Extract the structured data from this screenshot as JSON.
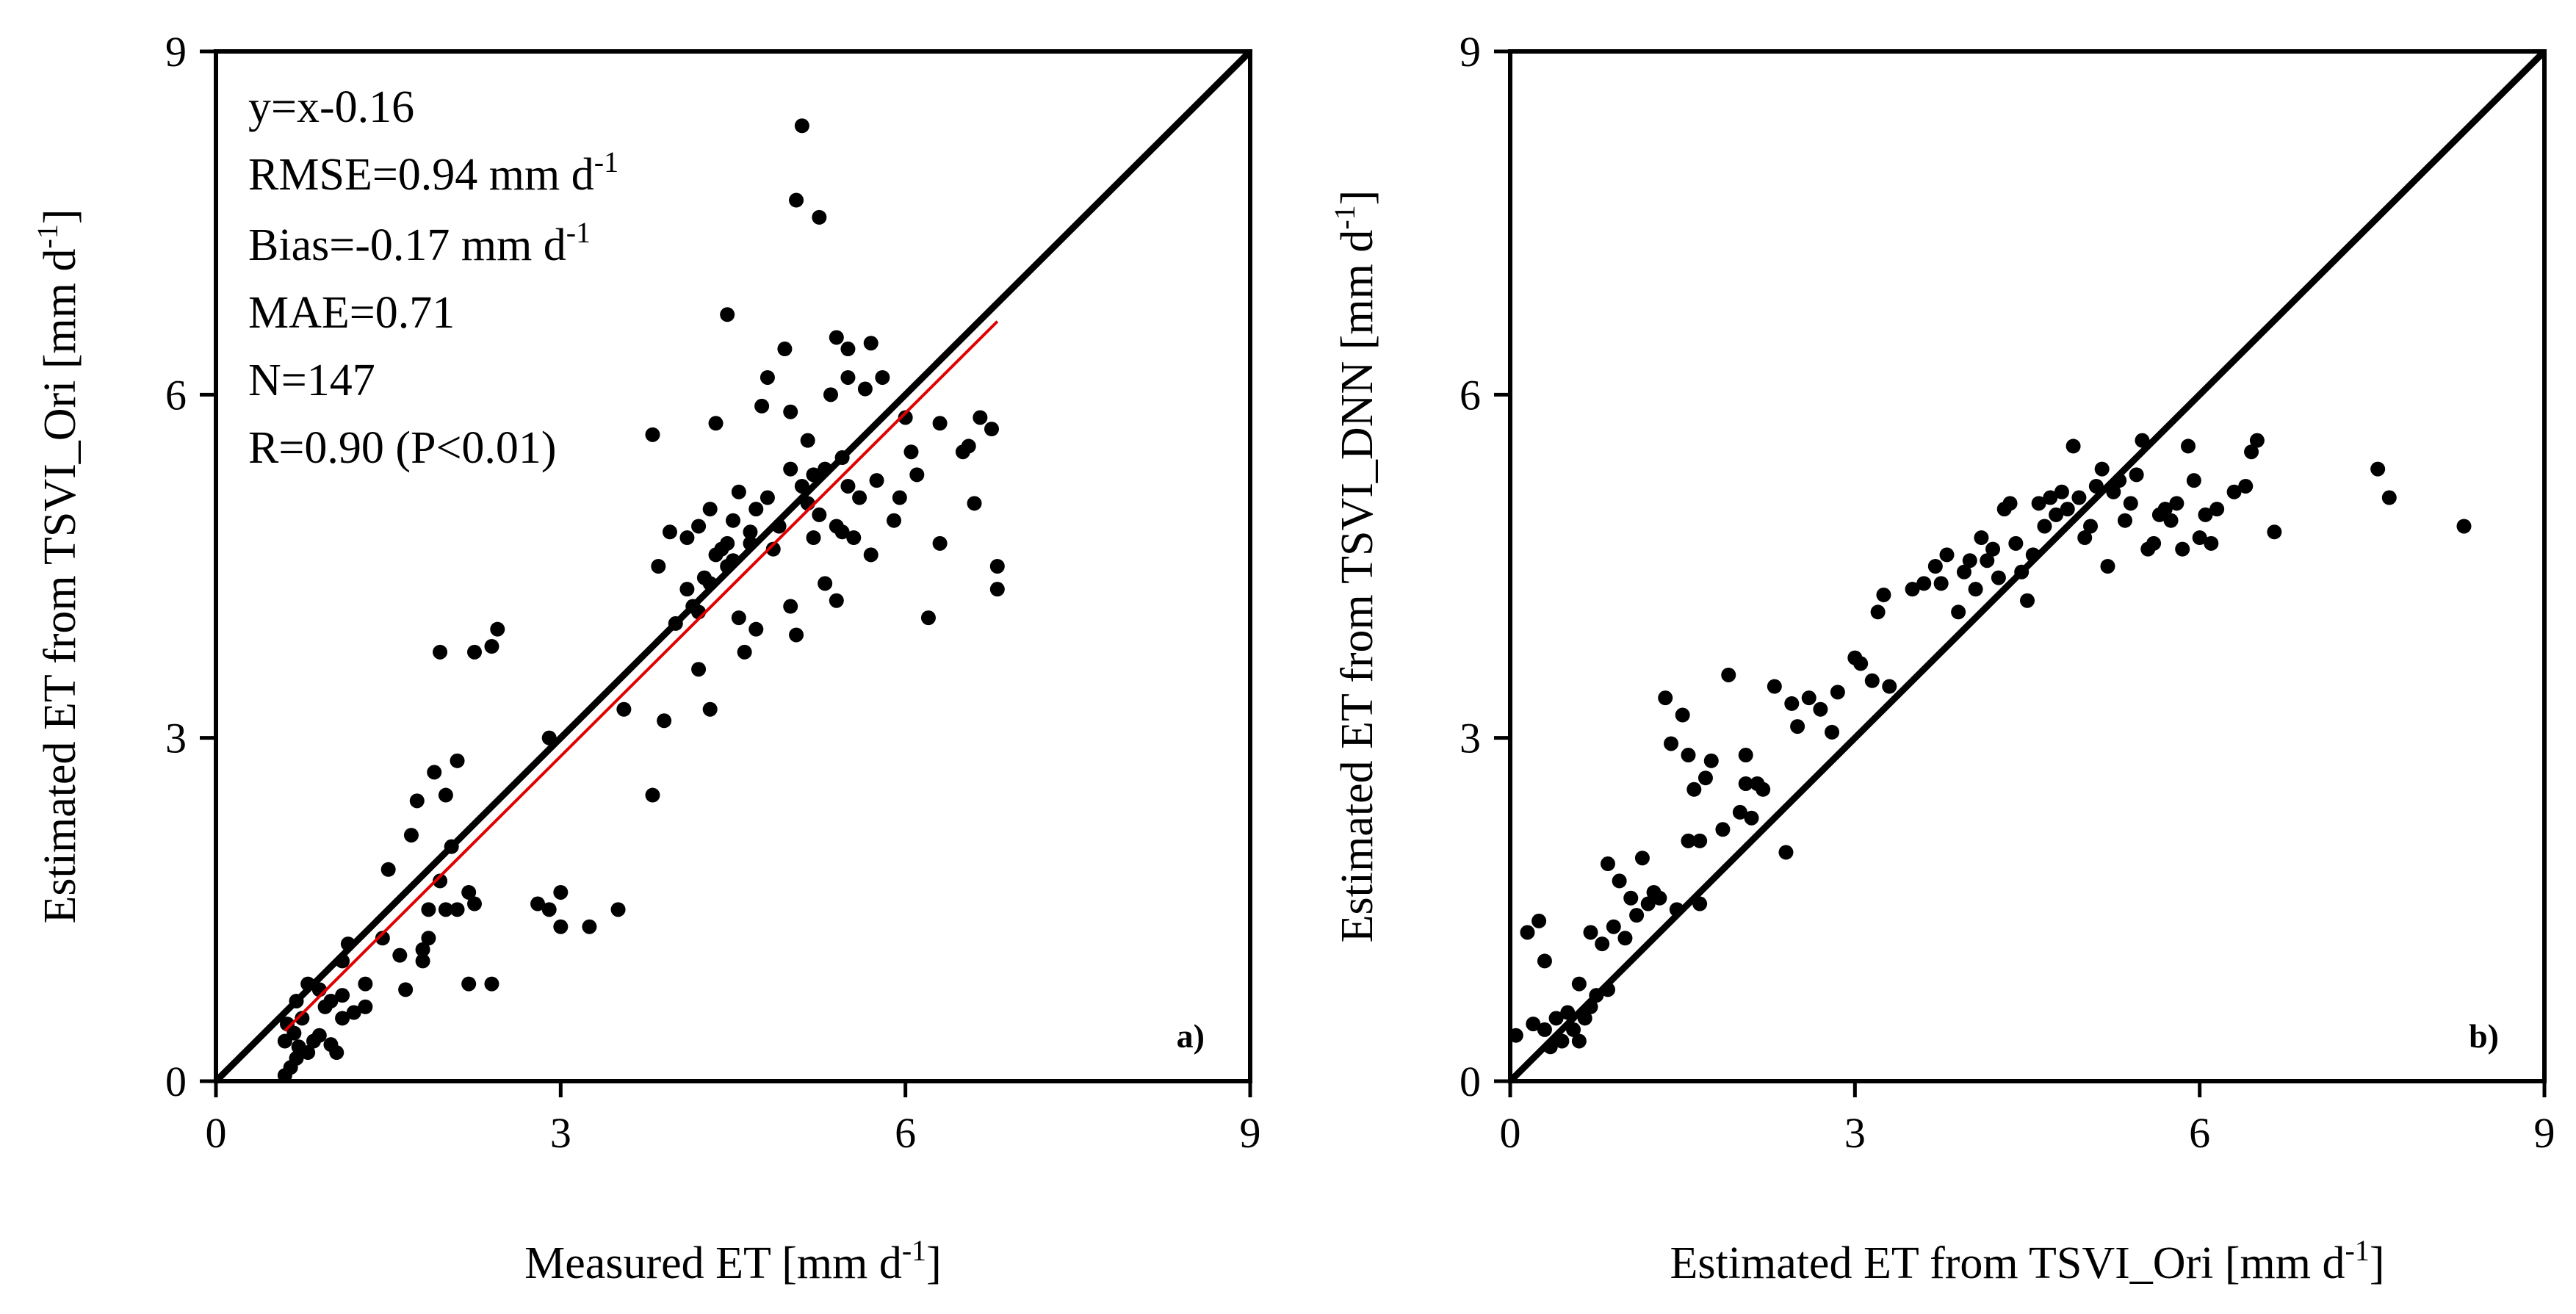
{
  "chart_data": [
    {
      "type": "scatter",
      "panel_label": "a)",
      "xlabel": "Measured ET [mm d",
      "xlabel_sup": "-1",
      "xlabel_end": "]",
      "ylabel": "Estimated ET from TSVI_Ori [mm d",
      "ylabel_sup": "-1",
      "ylabel_end": "]",
      "xlim": [
        0,
        9
      ],
      "ylim": [
        0,
        9
      ],
      "xticks": [
        "0",
        "3",
        "6",
        "9"
      ],
      "yticks": [
        "0",
        "3",
        "6",
        "9"
      ],
      "one_to_one_line": true,
      "fit_line": {
        "slope": 1,
        "intercept": -0.16,
        "x_range": [
          0.6,
          6.8
        ],
        "color": "#e00000"
      },
      "stats": {
        "equation": "y=x-0.16",
        "rmse_text": "RMSE=0.94 mm d",
        "rmse_sup": "-1",
        "bias_text": "Bias=-0.17 mm d",
        "bias_sup": "-1",
        "mae": "MAE=0.71",
        "n": "N=147",
        "r": "R=0.90 (P<0.01)"
      },
      "points": [
        [
          0.6,
          0.05
        ],
        [
          0.65,
          0.12
        ],
        [
          0.7,
          0.2
        ],
        [
          0.72,
          0.3
        ],
        [
          0.6,
          0.35
        ],
        [
          0.68,
          0.42
        ],
        [
          0.62,
          0.5
        ],
        [
          0.75,
          0.55
        ],
        [
          0.8,
          0.25
        ],
        [
          0.85,
          0.35
        ],
        [
          0.9,
          0.4
        ],
        [
          0.95,
          0.65
        ],
        [
          1.0,
          0.7
        ],
        [
          1.05,
          0.25
        ],
        [
          1.0,
          0.32
        ],
        [
          1.1,
          0.55
        ],
        [
          0.7,
          0.7
        ],
        [
          0.8,
          0.85
        ],
        [
          0.9,
          0.8
        ],
        [
          1.1,
          0.75
        ],
        [
          1.2,
          0.6
        ],
        [
          1.3,
          0.65
        ],
        [
          1.1,
          1.05
        ],
        [
          1.15,
          1.2
        ],
        [
          1.3,
          0.85
        ],
        [
          1.45,
          1.25
        ],
        [
          1.5,
          1.85
        ],
        [
          1.6,
          1.1
        ],
        [
          1.65,
          0.8
        ],
        [
          1.7,
          2.15
        ],
        [
          1.75,
          2.45
        ],
        [
          1.8,
          1.05
        ],
        [
          1.8,
          1.15
        ],
        [
          1.85,
          1.25
        ],
        [
          1.85,
          1.5
        ],
        [
          1.9,
          2.7
        ],
        [
          1.95,
          3.75
        ],
        [
          1.95,
          1.75
        ],
        [
          2.0,
          2.5
        ],
        [
          2.0,
          1.5
        ],
        [
          2.05,
          2.05
        ],
        [
          2.1,
          2.8
        ],
        [
          2.1,
          1.5
        ],
        [
          2.2,
          0.85
        ],
        [
          2.2,
          1.65
        ],
        [
          2.25,
          1.55
        ],
        [
          2.25,
          3.75
        ],
        [
          2.4,
          3.8
        ],
        [
          2.45,
          3.95
        ],
        [
          2.4,
          0.85
        ],
        [
          2.8,
          1.55
        ],
        [
          2.9,
          1.5
        ],
        [
          2.9,
          3.0
        ],
        [
          3.0,
          1.35
        ],
        [
          3.0,
          1.65
        ],
        [
          3.25,
          1.35
        ],
        [
          3.5,
          1.5
        ],
        [
          3.55,
          3.25
        ],
        [
          3.8,
          2.5
        ],
        [
          3.8,
          5.65
        ],
        [
          3.85,
          4.5
        ],
        [
          3.9,
          3.15
        ],
        [
          3.95,
          4.8
        ],
        [
          4.0,
          4.0
        ],
        [
          4.1,
          4.75
        ],
        [
          4.1,
          4.3
        ],
        [
          4.15,
          4.15
        ],
        [
          4.2,
          4.85
        ],
        [
          4.2,
          4.1
        ],
        [
          4.2,
          3.6
        ],
        [
          4.25,
          4.4
        ],
        [
          4.3,
          3.25
        ],
        [
          4.3,
          4.35
        ],
        [
          4.3,
          5.0
        ],
        [
          4.35,
          4.6
        ],
        [
          4.35,
          5.75
        ],
        [
          4.4,
          4.65
        ],
        [
          4.45,
          4.7
        ],
        [
          4.45,
          4.5
        ],
        [
          4.45,
          6.7
        ],
        [
          4.5,
          4.55
        ],
        [
          4.5,
          4.9
        ],
        [
          4.55,
          4.05
        ],
        [
          4.55,
          5.15
        ],
        [
          4.6,
          3.75
        ],
        [
          4.65,
          4.7
        ],
        [
          4.65,
          4.8
        ],
        [
          4.7,
          3.95
        ],
        [
          4.7,
          5.0
        ],
        [
          4.75,
          5.9
        ],
        [
          4.8,
          5.1
        ],
        [
          4.8,
          6.15
        ],
        [
          4.85,
          4.65
        ],
        [
          4.9,
          4.85
        ],
        [
          4.95,
          6.4
        ],
        [
          5.0,
          5.35
        ],
        [
          5.0,
          5.85
        ],
        [
          5.0,
          4.15
        ],
        [
          5.05,
          3.9
        ],
        [
          5.05,
          7.7
        ],
        [
          5.1,
          8.35
        ],
        [
          5.1,
          5.2
        ],
        [
          5.15,
          5.6
        ],
        [
          5.15,
          5.05
        ],
        [
          5.2,
          5.3
        ],
        [
          5.2,
          4.75
        ],
        [
          5.25,
          7.55
        ],
        [
          5.25,
          4.95
        ],
        [
          5.3,
          4.35
        ],
        [
          5.3,
          5.35
        ],
        [
          5.35,
          6.0
        ],
        [
          5.4,
          6.5
        ],
        [
          5.4,
          4.85
        ],
        [
          5.4,
          4.2
        ],
        [
          5.45,
          5.45
        ],
        [
          5.45,
          4.8
        ],
        [
          5.5,
          6.15
        ],
        [
          5.5,
          6.4
        ],
        [
          5.5,
          5.2
        ],
        [
          5.55,
          4.75
        ],
        [
          5.6,
          5.1
        ],
        [
          5.65,
          6.05
        ],
        [
          5.7,
          6.45
        ],
        [
          5.7,
          4.6
        ],
        [
          5.75,
          5.25
        ],
        [
          5.8,
          6.15
        ],
        [
          5.9,
          4.9
        ],
        [
          5.95,
          5.1
        ],
        [
          6.0,
          5.8
        ],
        [
          6.05,
          5.5
        ],
        [
          6.1,
          5.3
        ],
        [
          6.2,
          4.05
        ],
        [
          6.3,
          4.7
        ],
        [
          6.3,
          5.75
        ],
        [
          6.5,
          5.5
        ],
        [
          6.55,
          5.55
        ],
        [
          6.6,
          5.05
        ],
        [
          6.65,
          5.8
        ],
        [
          6.75,
          5.7
        ],
        [
          6.8,
          4.3
        ],
        [
          6.8,
          4.5
        ]
      ]
    },
    {
      "type": "scatter",
      "panel_label": "b)",
      "xlabel": "Estimated ET from TSVI_Ori [mm d",
      "xlabel_sup": "-1",
      "xlabel_end": "]",
      "ylabel": "Estimated ET from TSVI_DNN [mm d",
      "ylabel_sup": "-1",
      "ylabel_end": "]",
      "xlim": [
        0,
        9
      ],
      "ylim": [
        0,
        9
      ],
      "xticks": [
        "0",
        "3",
        "6",
        "9"
      ],
      "yticks": [
        "0",
        "3",
        "6",
        "9"
      ],
      "one_to_one_line": true,
      "points": [
        [
          0.05,
          0.4
        ],
        [
          0.15,
          1.3
        ],
        [
          0.2,
          0.5
        ],
        [
          0.25,
          1.4
        ],
        [
          0.3,
          1.05
        ],
        [
          0.3,
          0.45
        ],
        [
          0.35,
          0.3
        ],
        [
          0.4,
          0.55
        ],
        [
          0.45,
          0.35
        ],
        [
          0.5,
          0.6
        ],
        [
          0.55,
          0.45
        ],
        [
          0.6,
          0.35
        ],
        [
          0.6,
          0.85
        ],
        [
          0.65,
          0.55
        ],
        [
          0.7,
          1.3
        ],
        [
          0.7,
          0.65
        ],
        [
          0.75,
          0.75
        ],
        [
          0.8,
          1.2
        ],
        [
          0.85,
          0.8
        ],
        [
          0.85,
          1.9
        ],
        [
          0.9,
          1.35
        ],
        [
          0.95,
          1.75
        ],
        [
          1.0,
          1.25
        ],
        [
          1.05,
          1.6
        ],
        [
          1.1,
          1.45
        ],
        [
          1.15,
          1.95
        ],
        [
          1.2,
          1.55
        ],
        [
          1.25,
          1.65
        ],
        [
          1.3,
          1.6
        ],
        [
          1.35,
          3.35
        ],
        [
          1.4,
          2.95
        ],
        [
          1.45,
          1.5
        ],
        [
          1.5,
          3.2
        ],
        [
          1.55,
          2.1
        ],
        [
          1.55,
          2.85
        ],
        [
          1.6,
          2.55
        ],
        [
          1.65,
          2.1
        ],
        [
          1.65,
          1.55
        ],
        [
          1.7,
          2.65
        ],
        [
          1.75,
          2.8
        ],
        [
          1.85,
          2.2
        ],
        [
          1.9,
          3.55
        ],
        [
          2.0,
          2.35
        ],
        [
          2.05,
          2.6
        ],
        [
          2.05,
          2.85
        ],
        [
          2.1,
          2.3
        ],
        [
          2.15,
          2.6
        ],
        [
          2.2,
          2.55
        ],
        [
          2.3,
          3.45
        ],
        [
          2.4,
          2.0
        ],
        [
          2.45,
          3.3
        ],
        [
          2.5,
          3.1
        ],
        [
          2.6,
          3.35
        ],
        [
          2.7,
          3.25
        ],
        [
          2.8,
          3.05
        ],
        [
          2.85,
          3.4
        ],
        [
          3.0,
          3.7
        ],
        [
          3.05,
          3.65
        ],
        [
          3.15,
          3.5
        ],
        [
          3.2,
          4.1
        ],
        [
          3.25,
          4.25
        ],
        [
          3.3,
          3.45
        ],
        [
          3.5,
          4.3
        ],
        [
          3.6,
          4.35
        ],
        [
          3.7,
          4.5
        ],
        [
          3.75,
          4.35
        ],
        [
          3.8,
          4.6
        ],
        [
          3.9,
          4.1
        ],
        [
          3.95,
          4.45
        ],
        [
          4.0,
          4.55
        ],
        [
          4.05,
          4.3
        ],
        [
          4.1,
          4.75
        ],
        [
          4.15,
          4.55
        ],
        [
          4.2,
          4.65
        ],
        [
          4.25,
          4.4
        ],
        [
          4.3,
          5.0
        ],
        [
          4.35,
          5.05
        ],
        [
          4.4,
          4.7
        ],
        [
          4.45,
          4.45
        ],
        [
          4.5,
          4.2
        ],
        [
          4.55,
          4.6
        ],
        [
          4.6,
          5.05
        ],
        [
          4.65,
          4.85
        ],
        [
          4.7,
          5.1
        ],
        [
          4.75,
          4.95
        ],
        [
          4.8,
          5.15
        ],
        [
          4.85,
          5.0
        ],
        [
          4.9,
          5.55
        ],
        [
          4.95,
          5.1
        ],
        [
          5.0,
          4.75
        ],
        [
          5.05,
          4.85
        ],
        [
          5.1,
          5.2
        ],
        [
          5.15,
          5.35
        ],
        [
          5.2,
          4.5
        ],
        [
          5.25,
          5.15
        ],
        [
          5.3,
          5.25
        ],
        [
          5.35,
          4.9
        ],
        [
          5.4,
          5.05
        ],
        [
          5.45,
          5.3
        ],
        [
          5.5,
          5.6
        ],
        [
          5.55,
          4.65
        ],
        [
          5.6,
          4.7
        ],
        [
          5.65,
          4.95
        ],
        [
          5.7,
          5.0
        ],
        [
          5.75,
          4.9
        ],
        [
          5.8,
          5.05
        ],
        [
          5.85,
          4.65
        ],
        [
          5.9,
          5.55
        ],
        [
          5.95,
          5.25
        ],
        [
          6.0,
          4.75
        ],
        [
          6.05,
          4.95
        ],
        [
          6.1,
          4.7
        ],
        [
          6.15,
          5.0
        ],
        [
          6.3,
          5.15
        ],
        [
          6.4,
          5.2
        ],
        [
          6.45,
          5.5
        ],
        [
          6.5,
          5.6
        ],
        [
          6.65,
          4.8
        ],
        [
          7.55,
          5.35
        ],
        [
          7.65,
          5.1
        ],
        [
          8.3,
          4.85
        ]
      ]
    }
  ]
}
